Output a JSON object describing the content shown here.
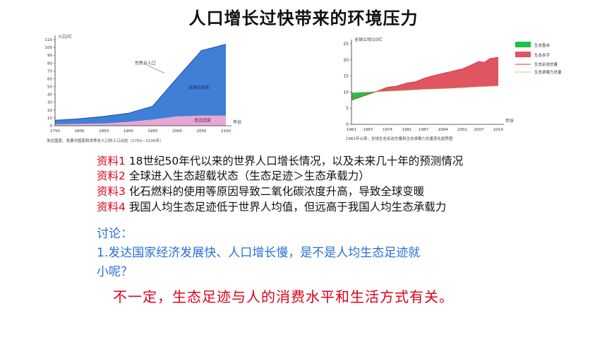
{
  "title": "人口增长过快带来的环境压力",
  "chart_data": [
    {
      "type": "area",
      "ylabel": "人口/亿",
      "xlabel": "年份",
      "x_ticks": [
        1750,
        1800,
        1850,
        1900,
        1950,
        2000,
        2050,
        2100
      ],
      "y_ticks": [
        0,
        10,
        20,
        30,
        40,
        50,
        60,
        70,
        80,
        90,
        100,
        110
      ],
      "xlim": [
        1750,
        2100
      ],
      "ylim": [
        0,
        110
      ],
      "stacked": true,
      "series": [
        {
          "name": "发达国家",
          "color": "#e8a6d2",
          "x": [
            1750,
            1800,
            1850,
            1900,
            1950,
            2000,
            2050,
            2100
          ],
          "values": [
            2,
            2.5,
            3,
            5,
            8,
            12,
            13,
            13
          ]
        },
        {
          "name": "发展中国家",
          "color": "#3f7fd6",
          "x": [
            1750,
            1800,
            1850,
            1900,
            1950,
            2000,
            2050,
            2100
          ],
          "values": [
            5,
            6.5,
            9,
            11,
            17,
            49,
            83,
            91
          ]
        }
      ],
      "annotations": [
        "世界总人口"
      ],
      "caption": "发达国家、发展中国家和世界总人口的人口动态（1750—2100年）"
    },
    {
      "type": "line",
      "ylabel": "全球公顷/10亿",
      "xlabel": "年份",
      "x_ticks": [
        1961,
        1967,
        1974,
        1981,
        1987,
        1994,
        2001,
        2007,
        2014
      ],
      "y_ticks": [
        0,
        5,
        10,
        15,
        20,
        25
      ],
      "xlim": [
        1961,
        2014
      ],
      "ylim": [
        0,
        25
      ],
      "legend": [
        "生态盈余",
        "生态赤字",
        "生态足迹总量",
        "生态承载力总量"
      ],
      "legend_placement": "top-right",
      "legend_colors": [
        "#22c04a",
        "#e05560",
        "#d0343c",
        "#8bb23a"
      ],
      "series": [
        {
          "name": "生态足迹总量",
          "color": "#d0343c",
          "x": [
            1961,
            1964,
            1967,
            1970,
            1974,
            1977,
            1981,
            1984,
            1987,
            1990,
            1994,
            1997,
            2001,
            2004,
            2007,
            2009,
            2011,
            2014
          ],
          "values": [
            7.5,
            8.4,
            9.3,
            10.2,
            11.5,
            11.8,
            12.8,
            13.2,
            14.2,
            15.0,
            15.8,
            16.4,
            17.2,
            18.3,
            19.5,
            19.2,
            20.4,
            20.8
          ]
        },
        {
          "name": "生态承载力总量",
          "color": "#8bb23a",
          "x": [
            1961,
            1967,
            1974,
            1981,
            1987,
            1994,
            2001,
            2007,
            2014
          ],
          "values": [
            9.8,
            10.0,
            10.3,
            10.6,
            10.9,
            11.1,
            11.4,
            11.7,
            12.0
          ]
        }
      ],
      "caption": "1961年以来，全球生态足迹总量和生态承载力总量变化趋势图"
    }
  ],
  "materials": [
    {
      "tag": "资料1",
      "text": " 18世纪50年代以来的世界人口增长情况，以及未来几十年的预测情况"
    },
    {
      "tag": "资料2",
      "text": " 全球进入生态超载状态（生态足迹＞生态承载力）"
    },
    {
      "tag": "资料3",
      "text": " 化石燃料的使用等原因导致二氧化碳浓度升高，导致全球变暖"
    },
    {
      "tag": "资料4",
      "text": " 我国人均生态足迹低于世界人均值，但远高于我国人均生态承载力"
    }
  ],
  "discussion": {
    "label": "讨论：",
    "question_line1": "1.发达国家经济发展快、人口增长慢，是不是人均生态足迹就",
    "question_line2": "小呢？"
  },
  "answer": "不一定，生态足迹与人的消费水平和生活方式有关。"
}
